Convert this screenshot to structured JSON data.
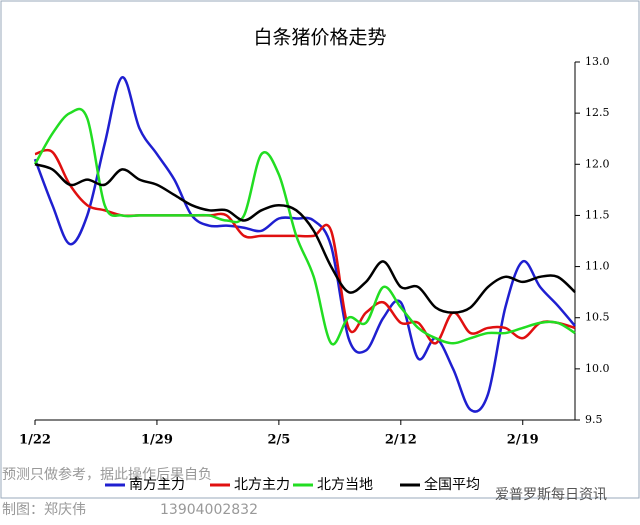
{
  "chart_data": {
    "type": "line",
    "title": "白条猪价格走势",
    "categories": [
      "1/22",
      null,
      null,
      null,
      null,
      null,
      null,
      "1/29",
      null,
      null,
      null,
      null,
      null,
      null,
      "2/5",
      null,
      null,
      null,
      null,
      null,
      null,
      "2/12",
      null,
      null,
      null,
      null,
      null,
      null,
      "2/19",
      null,
      null,
      null
    ],
    "series": [
      {
        "name": "南方主力",
        "color": "#1f1fd0",
        "values": [
          12.05,
          11.6,
          11.22,
          11.5,
          12.2,
          12.85,
          12.35,
          12.1,
          11.85,
          11.5,
          11.4,
          11.4,
          11.38,
          11.35,
          11.47,
          11.47,
          11.45,
          11.2,
          10.3,
          10.18,
          10.5,
          10.65,
          10.1,
          10.3,
          10.0,
          9.6,
          9.75,
          10.6,
          11.05,
          10.8,
          10.62,
          10.42
        ]
      },
      {
        "name": "北方主力",
        "color": "#e01010",
        "values": [
          12.1,
          12.12,
          11.8,
          11.6,
          11.55,
          11.5,
          11.5,
          11.5,
          11.5,
          11.5,
          11.5,
          11.5,
          11.3,
          11.3,
          11.3,
          11.3,
          11.3,
          11.35,
          10.4,
          10.55,
          10.65,
          10.45,
          10.45,
          10.25,
          10.55,
          10.35,
          10.4,
          10.4,
          10.3,
          10.45,
          10.45,
          10.4
        ]
      },
      {
        "name": "北方当地",
        "color": "#22dd22",
        "values": [
          12.0,
          12.3,
          12.5,
          12.45,
          11.6,
          11.5,
          11.5,
          11.5,
          11.5,
          11.5,
          11.5,
          11.45,
          11.5,
          12.1,
          11.9,
          11.3,
          10.9,
          10.25,
          10.5,
          10.45,
          10.8,
          10.6,
          10.4,
          10.3,
          10.25,
          10.3,
          10.35,
          10.35,
          10.4,
          10.45,
          10.45,
          10.35
        ]
      },
      {
        "name": "全国平均",
        "color": "#000000",
        "values": [
          12.0,
          11.95,
          11.8,
          11.85,
          11.8,
          11.95,
          11.85,
          11.8,
          11.7,
          11.6,
          11.55,
          11.55,
          11.45,
          11.55,
          11.6,
          11.55,
          11.35,
          11.0,
          10.75,
          10.85,
          11.05,
          10.8,
          10.8,
          10.6,
          10.55,
          10.6,
          10.8,
          10.9,
          10.85,
          10.9,
          10.9,
          10.75
        ]
      }
    ],
    "ylim": [
      9.5,
      13.0
    ],
    "yticks": [
      9.5,
      {
        "value": 10,
        "label": "10.0"
      },
      10.5,
      {
        "value": 11,
        "label": "11.0"
      },
      11.5,
      {
        "value": 12,
        "label": "12.0"
      },
      12.5,
      {
        "value": 13,
        "label": "13.0"
      }
    ],
    "annotations": [
      "预测只做参考，据此操作后果自负",
      "制图：郑庆伟",
      "13904002832",
      "爱普罗斯每日资讯"
    ]
  }
}
